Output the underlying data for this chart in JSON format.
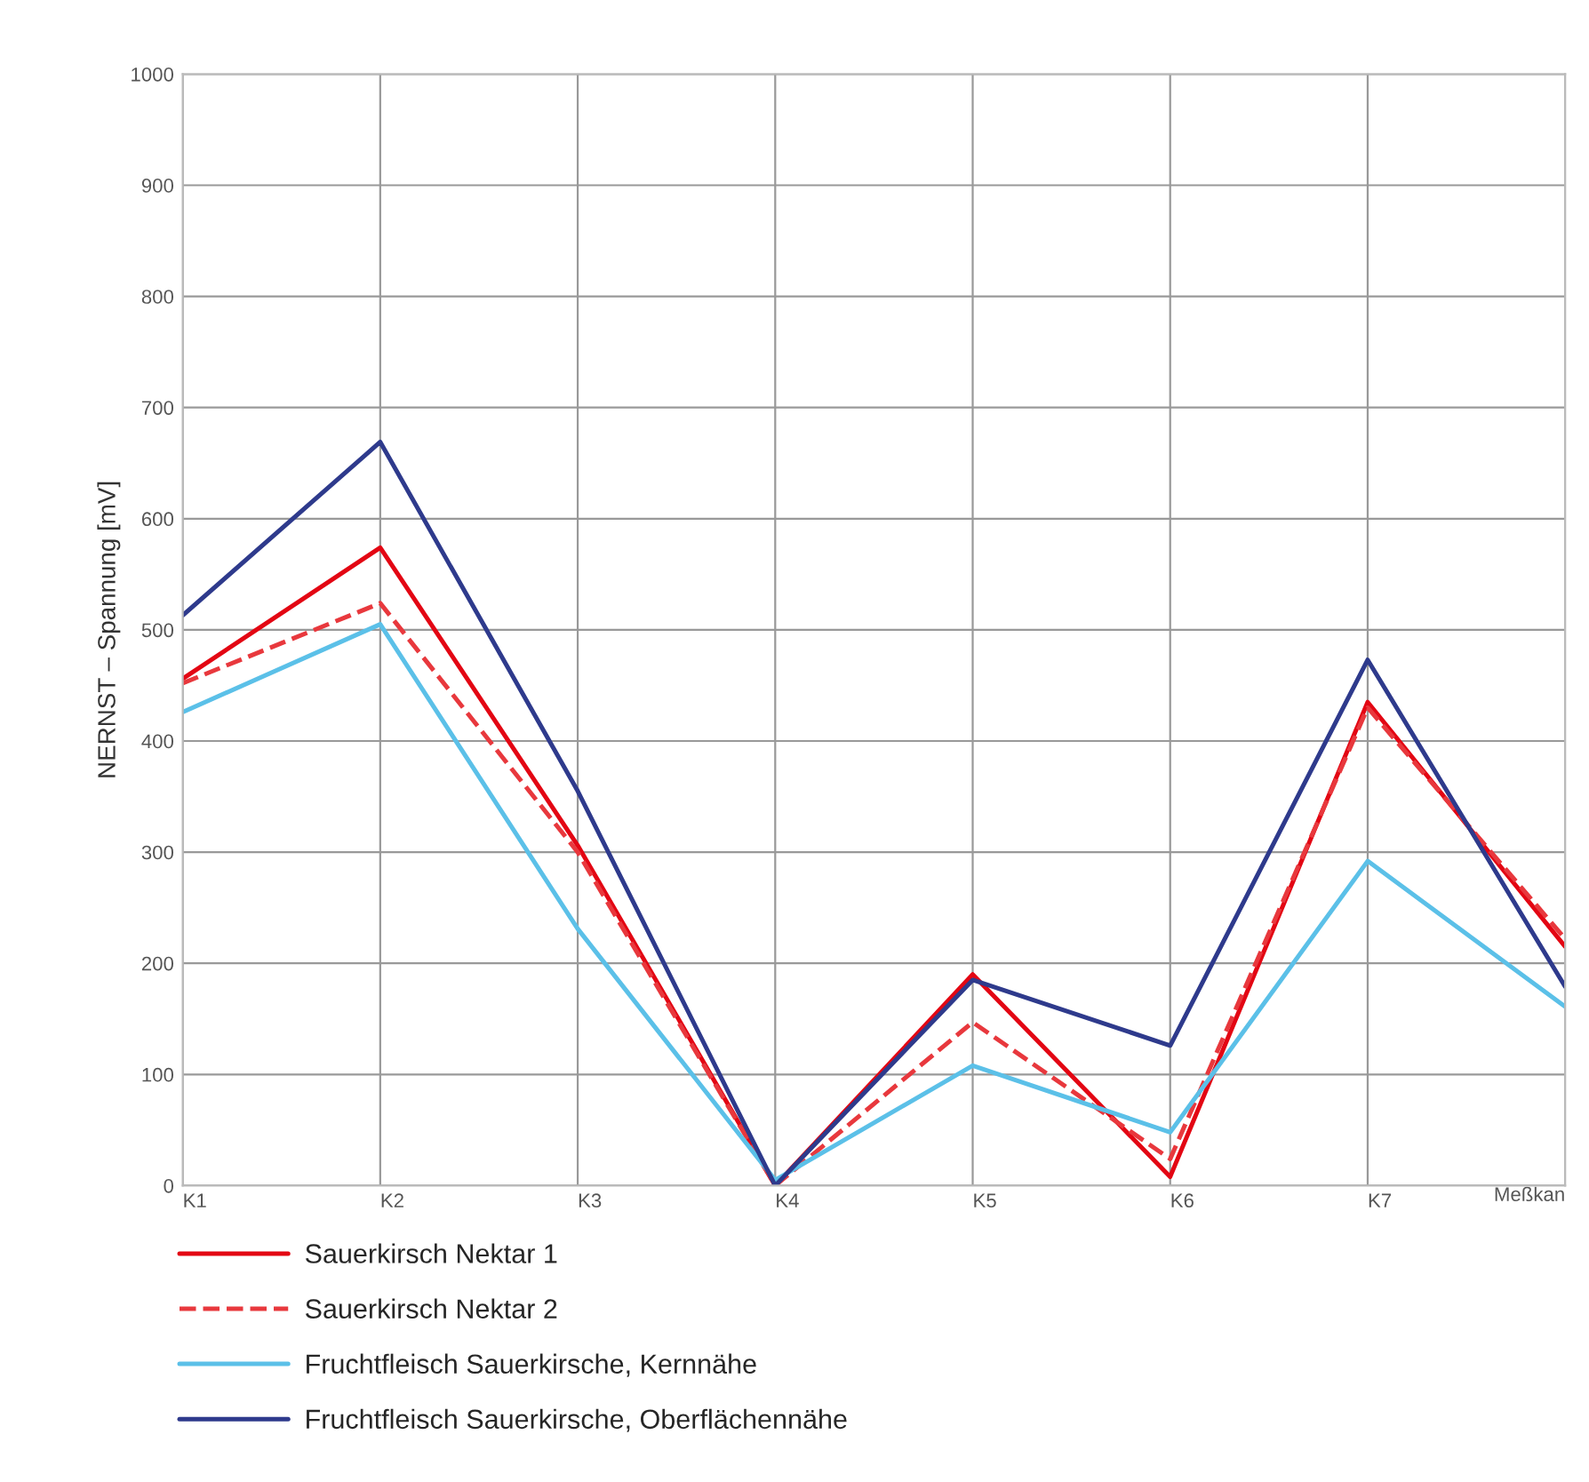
{
  "chart_data": {
    "type": "line",
    "ylabel": "NERNST – Spannung [mV]",
    "xlabel": "Meßkan",
    "categories": [
      "K1",
      "K2",
      "K3",
      "K4",
      "K5",
      "K6",
      "K7",
      null
    ],
    "series": [
      {
        "name": "Sauerkirsch Nektar 1",
        "color": "#e30613",
        "line_style": "solid",
        "values": [
          456,
          574,
          306,
          0,
          190,
          8,
          435,
          215
        ]
      },
      {
        "name": "Sauerkirsch Nektar 2",
        "color": "#e8383d",
        "line_style": "dashed",
        "values": [
          452,
          524,
          300,
          0,
          147,
          24,
          430,
          222
        ]
      },
      {
        "name": "Fruchtfleisch Sauerkirsche, Kernnähe",
        "color": "#5bc0e8",
        "line_style": "solid",
        "values": [
          426,
          505,
          231,
          5,
          108,
          48,
          292,
          161
        ]
      },
      {
        "name": "Fruchtfleisch Sauerkirsche, Oberflächennähe",
        "color": "#2e3a8c",
        "line_style": "solid",
        "values": [
          513,
          669,
          355,
          0,
          185,
          126,
          473,
          179
        ]
      }
    ],
    "ylim": [
      0,
      1000
    ],
    "yticks": [
      0,
      100,
      200,
      300,
      400,
      500,
      600,
      700,
      800,
      900,
      1000
    ],
    "grid": true,
    "legend": "bottom",
    "marker": "none"
  }
}
